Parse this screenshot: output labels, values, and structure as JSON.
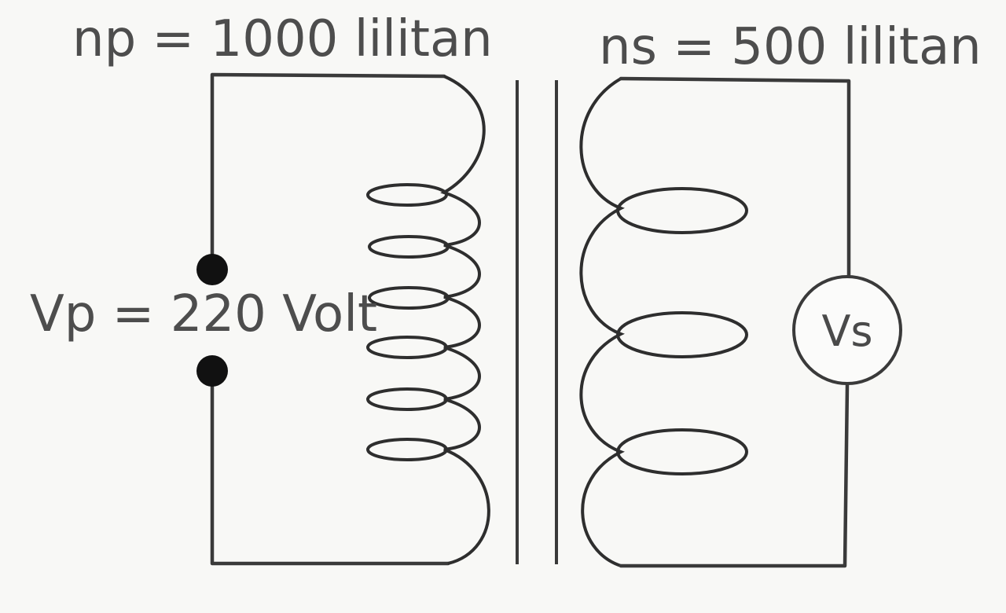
{
  "primary": {
    "turns_label": "np = 1000 lilitan",
    "voltage_label": "Vp = 220 Volt"
  },
  "secondary": {
    "turns_label": "ns = 500 lilitan",
    "meter_label": "Vs"
  }
}
